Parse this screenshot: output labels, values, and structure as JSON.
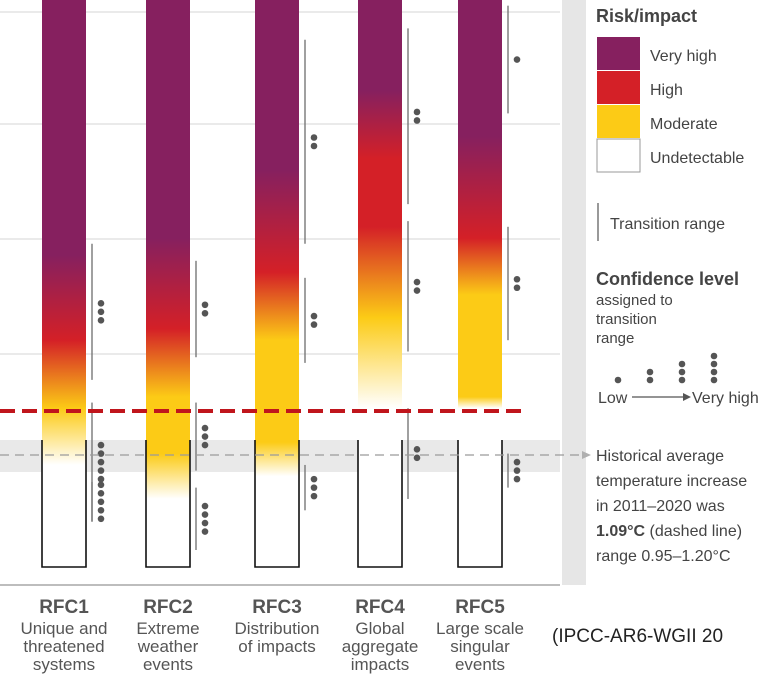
{
  "chart_data": {
    "type": "bar",
    "categories": [
      {
        "code": "RFC1",
        "lines": [
          "Unique and",
          "threatened",
          "systems"
        ]
      },
      {
        "code": "RFC2",
        "lines": [
          "Extreme",
          "weather",
          "events"
        ]
      },
      {
        "code": "RFC3",
        "lines": [
          "Distribution",
          "of impacts"
        ]
      },
      {
        "code": "RFC4",
        "lines": [
          "Global",
          "aggregate",
          "impacts"
        ]
      },
      {
        "code": "RFC5",
        "lines": [
          "Large scale",
          "singular",
          "events"
        ]
      }
    ],
    "gradients": [
      [
        [
          0,
          "white"
        ],
        [
          0.18,
          "white"
        ],
        [
          0.28,
          "moderate"
        ],
        [
          0.4,
          "high"
        ],
        [
          0.55,
          "very_high"
        ],
        [
          1,
          "very_high"
        ]
      ],
      [
        [
          0,
          "white"
        ],
        [
          0.12,
          "white"
        ],
        [
          0.2,
          "moderate"
        ],
        [
          0.3,
          "moderate"
        ],
        [
          0.42,
          "high"
        ],
        [
          0.58,
          "very_high"
        ],
        [
          1,
          "very_high"
        ]
      ],
      [
        [
          0,
          "white"
        ],
        [
          0.16,
          "white"
        ],
        [
          0.22,
          "moderate"
        ],
        [
          0.4,
          "moderate"
        ],
        [
          0.52,
          "high"
        ],
        [
          0.7,
          "very_high"
        ],
        [
          1,
          "very_high"
        ]
      ],
      [
        [
          0,
          "white"
        ],
        [
          0.28,
          "white"
        ],
        [
          0.44,
          "moderate"
        ],
        [
          0.6,
          "high"
        ],
        [
          0.72,
          "high"
        ],
        [
          0.84,
          "very_high"
        ],
        [
          1,
          "very_high"
        ]
      ],
      [
        [
          0,
          "white"
        ],
        [
          0.28,
          "white"
        ],
        [
          0.3,
          "moderate"
        ],
        [
          0.48,
          "moderate"
        ],
        [
          0.58,
          "high"
        ],
        [
          0.76,
          "very_high"
        ],
        [
          1,
          "very_high"
        ]
      ]
    ],
    "transition_ranges": [
      [
        {
          "y1": 0.33,
          "y2": 0.57,
          "dots": 3
        },
        {
          "y1": 0.08,
          "y2": 0.29,
          "dots": 5
        },
        {
          "y1": 0.08,
          "y2": 0.15,
          "dots": 5
        }
      ],
      [
        {
          "y1": 0.37,
          "y2": 0.54,
          "dots": 2
        },
        {
          "y1": 0.17,
          "y2": 0.29,
          "dots": 3
        },
        {
          "y1": 0.03,
          "y2": 0.14,
          "dots": 4
        }
      ],
      [
        {
          "y1": 0.57,
          "y2": 0.93,
          "dots": 2
        },
        {
          "y1": 0.36,
          "y2": 0.51,
          "dots": 2
        },
        {
          "y1": 0.1,
          "y2": 0.18,
          "dots": 3
        }
      ],
      [
        {
          "y1": 0.64,
          "y2": 0.95,
          "dots": 2
        },
        {
          "y1": 0.38,
          "y2": 0.61,
          "dots": 2
        },
        {
          "y1": 0.12,
          "y2": 0.28,
          "dots": 2
        }
      ],
      [
        {
          "y1": 0.8,
          "y2": 0.99,
          "dots": 1
        },
        {
          "y1": 0.4,
          "y2": 0.6,
          "dots": 2
        },
        {
          "y1": 0.14,
          "y2": 0.2,
          "dots": 3
        }
      ]
    ],
    "reference_lines": [
      {
        "name": "Historical average temperature increase",
        "style": "dashed-grey"
      },
      {
        "name": "current threshold",
        "style": "dashed-red"
      }
    ],
    "legend": {
      "title": "Risk/impact",
      "items": [
        {
          "label": "Very high",
          "color": "#86205f"
        },
        {
          "label": "High",
          "color": "#d42027"
        },
        {
          "label": "Moderate",
          "color": "#fccb16"
        },
        {
          "label": "Undetectable",
          "color": "#ffffff"
        }
      ],
      "transition_label": "Transition range",
      "confidence_title": "Confidence level",
      "confidence_sub": [
        "assigned to",
        "transition",
        "range"
      ],
      "confidence_low": "Low",
      "confidence_high": "Very high",
      "historical_note_lines": [
        "Historical average",
        "temperature increase",
        "in 2011–2020 was"
      ],
      "historical_value": "1.09°C",
      "historical_value_suffix": " (dashed line)",
      "historical_range": "range 0.95–1.20°C"
    },
    "colors": {
      "very_high": "#86205f",
      "high": "#d42027",
      "moderate": "#fccb16",
      "white": "#ffffff",
      "red_dash": "#c0151c"
    }
  },
  "citation": "(IPCC-AR6-WGII 20"
}
